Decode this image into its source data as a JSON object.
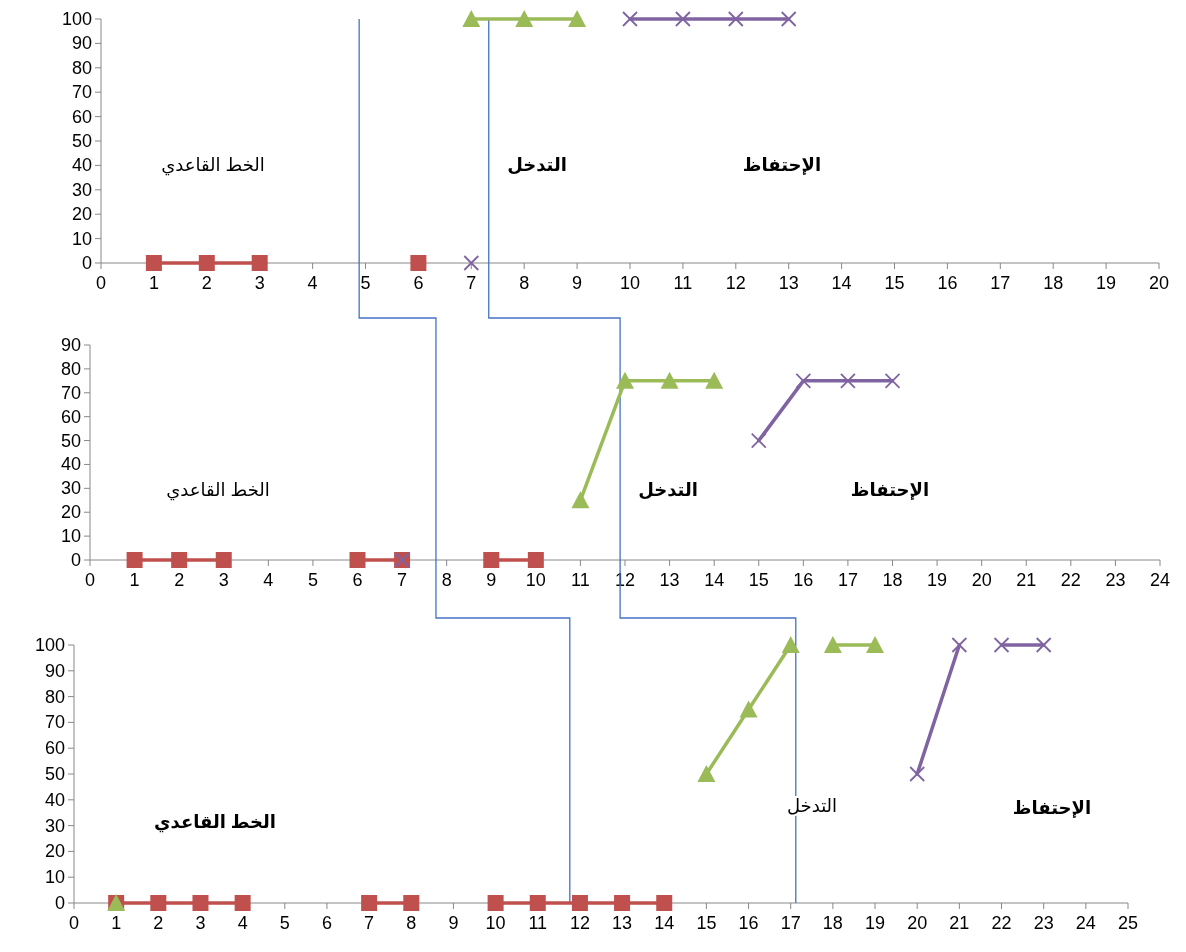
{
  "chart_data": [
    {
      "type": "line",
      "xlim": [
        0,
        20
      ],
      "ylim": [
        0,
        100
      ],
      "xticks": [
        0,
        1,
        2,
        3,
        4,
        5,
        6,
        7,
        8,
        9,
        10,
        11,
        12,
        13,
        14,
        15,
        16,
        17,
        18,
        19,
        20
      ],
      "yticks": [
        0,
        10,
        20,
        30,
        40,
        50,
        60,
        70,
        80,
        90,
        100
      ],
      "series": [
        {
          "color": "#c0504d",
          "marker": "square",
          "x": [
            1,
            2,
            3
          ],
          "values": [
            0,
            0,
            0
          ]
        },
        {
          "color": "#c0504d",
          "marker": "square",
          "x": [
            6
          ],
          "values": [
            0
          ]
        },
        {
          "color": "#9bbb59",
          "marker": "triangle",
          "x": [
            7,
            8,
            9
          ],
          "values": [
            100,
            100,
            100
          ]
        },
        {
          "color": "#8064a2",
          "marker": "cross",
          "x": [
            7
          ],
          "values": [
            0
          ]
        },
        {
          "color": "#8064a2",
          "marker": "cross",
          "x": [
            10,
            11,
            12,
            13
          ],
          "values": [
            100,
            100,
            100,
            100
          ]
        }
      ],
      "ref_lines": [
        {
          "axis": "x",
          "value": 4.88,
          "color": "#4472c4"
        },
        {
          "axis": "x",
          "value": 7.33,
          "color": "#4472c4"
        }
      ],
      "annotations": [
        "الخط القاعدي",
        "التدخل",
        "الإحتفاظ"
      ]
    },
    {
      "type": "line",
      "xlim": [
        0,
        24
      ],
      "ylim": [
        0,
        90
      ],
      "xticks": [
        0,
        1,
        2,
        3,
        4,
        5,
        6,
        7,
        8,
        9,
        10,
        11,
        12,
        13,
        14,
        15,
        16,
        17,
        18,
        19,
        20,
        21,
        22,
        23,
        24
      ],
      "yticks": [
        0,
        10,
        20,
        30,
        40,
        50,
        60,
        70,
        80,
        90
      ],
      "series": [
        {
          "color": "#c0504d",
          "marker": "square",
          "x": [
            1,
            2,
            3
          ],
          "values": [
            0,
            0,
            0
          ]
        },
        {
          "color": "#c0504d",
          "marker": "square",
          "x": [
            6,
            7
          ],
          "values": [
            0,
            0
          ]
        },
        {
          "color": "#c0504d",
          "marker": "square",
          "x": [
            9,
            10
          ],
          "values": [
            0,
            0
          ]
        },
        {
          "color": "#9bbb59",
          "marker": "triangle",
          "x": [
            11,
            12,
            13,
            14
          ],
          "values": [
            25,
            75,
            75,
            75
          ]
        },
        {
          "color": "#8064a2",
          "marker": "cross",
          "x": [
            7
          ],
          "values": [
            0
          ]
        },
        {
          "color": "#8064a2",
          "marker": "cross",
          "x": [
            15,
            16,
            17,
            18
          ],
          "values": [
            50,
            75,
            75,
            75
          ]
        }
      ],
      "ref_lines": [
        {
          "axis": "x",
          "value": 7.76,
          "color": "#4472c4"
        },
        {
          "axis": "x",
          "value": 11.89,
          "color": "#4472c4"
        }
      ],
      "annotations": [
        "الخط القاعدي",
        "التدخل",
        "الإحتفاظ"
      ]
    },
    {
      "type": "line",
      "xlim": [
        0,
        25
      ],
      "ylim": [
        0,
        100
      ],
      "xticks": [
        0,
        1,
        2,
        3,
        4,
        5,
        6,
        7,
        8,
        9,
        10,
        11,
        12,
        13,
        14,
        15,
        16,
        17,
        18,
        19,
        20,
        21,
        22,
        23,
        24,
        25
      ],
      "yticks": [
        0,
        10,
        20,
        30,
        40,
        50,
        60,
        70,
        80,
        90,
        100
      ],
      "series": [
        {
          "color": "#c0504d",
          "marker": "square",
          "x": [
            1,
            2,
            3,
            4
          ],
          "values": [
            0,
            0,
            0,
            0
          ]
        },
        {
          "color": "#c0504d",
          "marker": "square",
          "x": [
            7,
            8
          ],
          "values": [
            0,
            0
          ]
        },
        {
          "color": "#c0504d",
          "marker": "square",
          "x": [
            10,
            11,
            12,
            13,
            14
          ],
          "values": [
            0,
            0,
            0,
            0,
            0
          ]
        },
        {
          "color": "#9bbb59",
          "marker": "triangle",
          "x": [
            1
          ],
          "values": [
            0
          ]
        },
        {
          "color": "#9bbb59",
          "marker": "triangle",
          "x": [
            15,
            16,
            17
          ],
          "values": [
            50,
            75,
            100
          ]
        },
        {
          "color": "#9bbb59",
          "marker": "triangle",
          "x": [
            18,
            19
          ],
          "values": [
            100,
            100
          ]
        },
        {
          "color": "#8064a2",
          "marker": "cross",
          "x": [
            20,
            21
          ],
          "values": [
            50,
            100
          ]
        },
        {
          "color": "#8064a2",
          "marker": "cross",
          "x": [
            22,
            23
          ],
          "values": [
            100,
            100
          ]
        }
      ],
      "ref_lines": [
        {
          "axis": "x",
          "value": 11.76,
          "color": "#4472c4"
        },
        {
          "axis": "x",
          "value": 17.12,
          "color": "#4472c4"
        }
      ],
      "annotations": [
        "الخط القاعدي",
        "التدخل",
        "الإحتفاظ"
      ]
    }
  ]
}
